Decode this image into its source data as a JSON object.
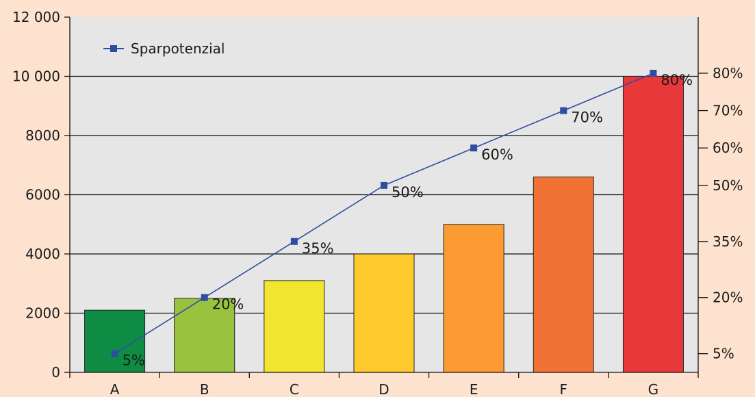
{
  "chart_data": {
    "type": "bar",
    "categories": [
      "A",
      "B",
      "C",
      "D",
      "E",
      "F",
      "G"
    ],
    "bar_values": [
      2100,
      2500,
      3100,
      4000,
      5000,
      6600,
      10000
    ],
    "bar_colors": [
      "#0f8c44",
      "#99c33f",
      "#f2e52f",
      "#fdcb2e",
      "#fb9b31",
      "#f27236",
      "#e8383a"
    ],
    "ylim": [
      0,
      12000
    ],
    "yticks": [
      0,
      2000,
      4000,
      6000,
      8000,
      10000,
      12000
    ],
    "ytick_labels": [
      "0",
      "2000",
      "4000",
      "6000",
      "8000",
      "10 000",
      "12 000"
    ],
    "series": [
      {
        "name": "Sparpotenzial",
        "type": "line",
        "axis": "right",
        "values": [
          5,
          20,
          35,
          50,
          60,
          70,
          80
        ],
        "labels": [
          "5%",
          "20%",
          "35%",
          "50%",
          "60%",
          "70%",
          "80%"
        ],
        "color": "#2f4ea1"
      }
    ],
    "y2lim": [
      0,
      95
    ],
    "y2ticks": [
      5,
      20,
      35,
      50,
      60,
      70,
      80
    ],
    "y2tick_labels": [
      "5%",
      "20%",
      "35%",
      "50%",
      "60%",
      "70%",
      "80%"
    ],
    "grid": true,
    "legend_position": "top-left",
    "background_color": "#fde3cf",
    "plot_background_color": "#e6e6e6"
  }
}
